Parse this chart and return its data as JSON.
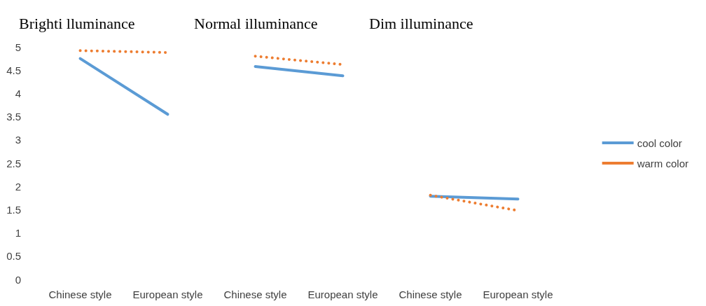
{
  "chart_data": {
    "type": "line",
    "categories": [
      "Chinese style",
      "European style",
      "Chinese style",
      "European style",
      "Chinese style",
      "European style"
    ],
    "annotations": [
      "Brighti lluminance",
      "Normal illuminance",
      "Dim illuminance"
    ],
    "series": [
      {
        "name": "cool color",
        "color": "#5b9bd5",
        "line_style": "solid",
        "values": [
          4.75,
          3.55,
          null,
          null,
          null,
          null
        ]
      },
      {
        "name": "warm color",
        "color": "#ed7d31",
        "line_style": "dotted",
        "values": [
          4.92,
          4.88,
          null,
          null,
          null,
          null
        ]
      },
      {
        "color": "#5b9bd5",
        "line_style": "solid",
        "values": [
          null,
          null,
          4.58,
          4.38,
          null,
          null
        ]
      },
      {
        "color": "#ed7d31",
        "line_style": "dotted",
        "values": [
          null,
          null,
          4.8,
          4.62,
          null,
          null
        ]
      },
      {
        "color": "#5b9bd5",
        "line_style": "solid",
        "values": [
          null,
          null,
          null,
          null,
          1.79,
          1.73
        ]
      },
      {
        "color": "#ed7d31",
        "line_style": "dotted",
        "values": [
          null,
          null,
          null,
          null,
          1.81,
          1.48
        ]
      }
    ],
    "ylim": [
      0,
      5
    ],
    "yticks": [
      0,
      0.5,
      1,
      1.5,
      2,
      2.5,
      3,
      3.5,
      4,
      4.5,
      5
    ],
    "grid": false,
    "legend": "right",
    "marker": "none"
  }
}
